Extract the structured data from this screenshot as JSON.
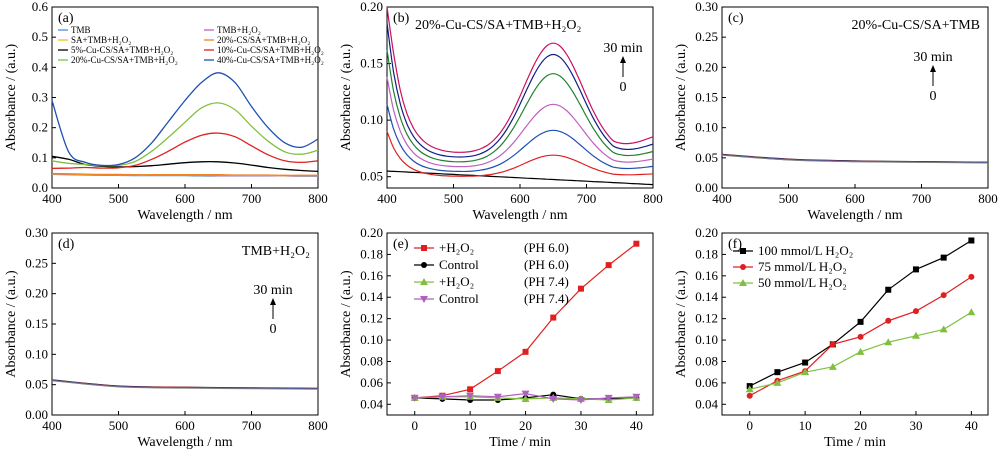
{
  "figure": {
    "xlabel_wl": "Wavelength / nm",
    "xlabel_time": "Time / min",
    "ylabel": "Absorbance / (a.u.)",
    "arrow_top": "30 min",
    "arrow_bottom": "0"
  },
  "chart_data": [
    {
      "type": "line",
      "panel_label": "(a)",
      "xlabel": "Wavelength / nm",
      "ylabel": "Absorbance / (a.u.)",
      "xlim": [
        400,
        800
      ],
      "ylim": [
        0,
        0.6
      ],
      "xticks": [
        "400",
        "500",
        "600",
        "700",
        "800"
      ],
      "yticks": [
        "0.0",
        "0.1",
        "0.2",
        "0.3",
        "0.4",
        "0.5",
        "0.6"
      ],
      "legend_placement": "top",
      "x": [
        400,
        425,
        450,
        475,
        500,
        525,
        550,
        575,
        600,
        625,
        650,
        675,
        700,
        725,
        750,
        775,
        800
      ],
      "series": [
        {
          "name": "TMB",
          "color": "#4a90d9",
          "values": [
            0.045,
            0.044,
            0.043,
            0.042,
            0.042,
            0.041,
            0.041,
            0.041,
            0.041,
            0.04,
            0.04,
            0.04,
            0.04,
            0.04,
            0.04,
            0.039,
            0.039
          ]
        },
        {
          "name": "TMB+H₂O₂",
          "color": "#c060c0",
          "values": [
            0.046,
            0.045,
            0.044,
            0.043,
            0.043,
            0.042,
            0.042,
            0.042,
            0.042,
            0.042,
            0.041,
            0.041,
            0.041,
            0.041,
            0.04,
            0.04,
            0.04
          ]
        },
        {
          "name": "SA+TMB+H₂O₂",
          "color": "#f0c020",
          "values": [
            0.047,
            0.046,
            0.045,
            0.044,
            0.044,
            0.043,
            0.043,
            0.043,
            0.043,
            0.043,
            0.043,
            0.042,
            0.042,
            0.042,
            0.041,
            0.041,
            0.041
          ]
        },
        {
          "name": "20%-CS/SA+TMB+H₂O₂",
          "color": "#f08020",
          "values": [
            0.048,
            0.047,
            0.046,
            0.045,
            0.045,
            0.044,
            0.044,
            0.044,
            0.044,
            0.044,
            0.044,
            0.043,
            0.043,
            0.043,
            0.042,
            0.042,
            0.042
          ]
        },
        {
          "name": "5%-Cu-CS/SA+TMB+H₂O₂",
          "color": "#000000",
          "values": [
            0.105,
            0.095,
            0.078,
            0.072,
            0.07,
            0.071,
            0.074,
            0.079,
            0.084,
            0.087,
            0.087,
            0.083,
            0.076,
            0.068,
            0.062,
            0.058,
            0.055
          ]
        },
        {
          "name": "10%-Cu-CS/SA+TMB+H₂O₂",
          "color": "#e02020",
          "values": [
            0.065,
            0.066,
            0.068,
            0.066,
            0.067,
            0.075,
            0.095,
            0.122,
            0.152,
            0.175,
            0.182,
            0.17,
            0.14,
            0.11,
            0.09,
            0.085,
            0.09
          ]
        },
        {
          "name": "20%-Cu-CS/SA+TMB+H₂O₂",
          "color": "#80c040",
          "values": [
            0.09,
            0.082,
            0.078,
            0.074,
            0.075,
            0.088,
            0.122,
            0.168,
            0.218,
            0.266,
            0.282,
            0.26,
            0.205,
            0.155,
            0.12,
            0.112,
            0.125
          ]
        },
        {
          "name": "40%-Cu-CS/SA+TMB+H₂O₂",
          "color": "#2050b0",
          "values": [
            0.29,
            0.12,
            0.085,
            0.075,
            0.078,
            0.1,
            0.15,
            0.22,
            0.29,
            0.35,
            0.382,
            0.35,
            0.27,
            0.2,
            0.15,
            0.135,
            0.162
          ]
        }
      ]
    },
    {
      "type": "line",
      "panel_label": "(b)",
      "title": "20%-Cu-CS/SA+TMB+H₂O₂",
      "xlabel": "Wavelength / nm",
      "ylabel": "Absorbance / (a.u.)",
      "xlim": [
        400,
        800
      ],
      "ylim": [
        0.04,
        0.2
      ],
      "xticks": [
        "400",
        "500",
        "600",
        "700",
        "800"
      ],
      "yticks": [
        "0.05",
        "0.10",
        "0.15",
        "0.20"
      ],
      "annotation_arrow": {
        "from": "0",
        "to": "30 min"
      },
      "peak_values_650nm": [
        0.069,
        0.091,
        0.114,
        0.141,
        0.158,
        0.168
      ]
    },
    {
      "type": "line",
      "panel_label": "(c)",
      "title": "20%-Cu-CS/SA+TMB",
      "xlabel": "Wavelength / nm",
      "ylabel": "Absorbance / (a.u.)",
      "xlim": [
        400,
        800
      ],
      "ylim": [
        0,
        0.3
      ],
      "xticks": [
        "400",
        "500",
        "600",
        "700",
        "800"
      ],
      "yticks": [
        "0.00",
        "0.05",
        "0.10",
        "0.15",
        "0.20",
        "0.25",
        "0.30"
      ],
      "annotation_arrow": {
        "from": "0",
        "to": "30 min"
      },
      "x": [
        400,
        500,
        600,
        700,
        800
      ],
      "values": [
        0.056,
        0.048,
        0.045,
        0.044,
        0.043
      ]
    },
    {
      "type": "line",
      "panel_label": "(d)",
      "title": "TMB+H₂O₂",
      "xlabel": "Wavelength / nm",
      "ylabel": "Absorbance / (a.u.)",
      "xlim": [
        400,
        800
      ],
      "ylim": [
        0,
        0.3
      ],
      "xticks": [
        "400",
        "500",
        "600",
        "700",
        "800"
      ],
      "yticks": [
        "0.00",
        "0.05",
        "0.10",
        "0.15",
        "0.20",
        "0.25",
        "0.30"
      ],
      "annotation_arrow": {
        "from": "0",
        "to": "30 min"
      },
      "x": [
        400,
        500,
        600,
        700,
        800
      ],
      "values": [
        0.058,
        0.048,
        0.046,
        0.045,
        0.044
      ]
    },
    {
      "type": "line",
      "panel_label": "(e)",
      "xlabel": "Time / min",
      "ylabel": "Absorbance / (a.u.)",
      "xlim": [
        -5,
        43
      ],
      "ylim": [
        0.03,
        0.2
      ],
      "xticks": [
        "0",
        "10",
        "20",
        "30",
        "40"
      ],
      "yticks": [
        "0.04",
        "0.06",
        "0.08",
        "0.10",
        "0.12",
        "0.14",
        "0.16",
        "0.18",
        "0.20"
      ],
      "legend_placement": "top-left",
      "x": [
        0,
        5,
        10,
        15,
        20,
        25,
        30,
        35,
        40
      ],
      "series": [
        {
          "name": "+H₂O₂",
          "condition": "(PH 6.0)",
          "color": "#e02020",
          "marker": "square",
          "values": [
            0.046,
            0.048,
            0.054,
            0.071,
            0.089,
            0.121,
            0.148,
            0.17,
            0.19
          ]
        },
        {
          "name": "Control",
          "condition": "(PH 6.0)",
          "color": "#000000",
          "marker": "circle",
          "values": [
            0.046,
            0.045,
            0.044,
            0.044,
            0.046,
            0.049,
            0.045,
            0.045,
            0.046
          ]
        },
        {
          "name": "+H₂O₂",
          "condition": "(PH 7.4)",
          "color": "#80c040",
          "marker": "triangle-up",
          "values": [
            0.046,
            0.047,
            0.047,
            0.046,
            0.045,
            0.046,
            0.045,
            0.044,
            0.046
          ]
        },
        {
          "name": "Control",
          "condition": "(PH 7.4)",
          "color": "#b060c0",
          "marker": "triangle-down",
          "values": [
            0.046,
            0.047,
            0.048,
            0.047,
            0.05,
            0.045,
            0.044,
            0.046,
            0.047
          ]
        }
      ]
    },
    {
      "type": "line",
      "panel_label": "(f)",
      "xlabel": "Time / min",
      "ylabel": "Absorbance / (a.u.)",
      "xlim": [
        -5,
        43
      ],
      "ylim": [
        0.03,
        0.2
      ],
      "xticks": [
        "0",
        "10",
        "20",
        "30",
        "40"
      ],
      "yticks": [
        "0.04",
        "0.06",
        "0.08",
        "0.10",
        "0.12",
        "0.14",
        "0.16",
        "0.18",
        "0.20"
      ],
      "legend_placement": "top-left",
      "x": [
        0,
        5,
        10,
        15,
        20,
        25,
        30,
        35,
        40
      ],
      "series": [
        {
          "name": "100 mmol/L H₂O₂",
          "color": "#000000",
          "marker": "square",
          "values": [
            0.057,
            0.07,
            0.079,
            0.096,
            0.117,
            0.147,
            0.166,
            0.177,
            0.193
          ]
        },
        {
          "name": "75 mmol/L H₂O₂",
          "color": "#e02020",
          "marker": "circle",
          "values": [
            0.048,
            0.062,
            0.071,
            0.096,
            0.103,
            0.118,
            0.127,
            0.142,
            0.159
          ]
        },
        {
          "name": "50 mmol/L H₂O₂",
          "color": "#80c040",
          "marker": "triangle-up",
          "values": [
            0.054,
            0.06,
            0.07,
            0.075,
            0.089,
            0.098,
            0.104,
            0.11,
            0.126
          ]
        }
      ]
    }
  ]
}
